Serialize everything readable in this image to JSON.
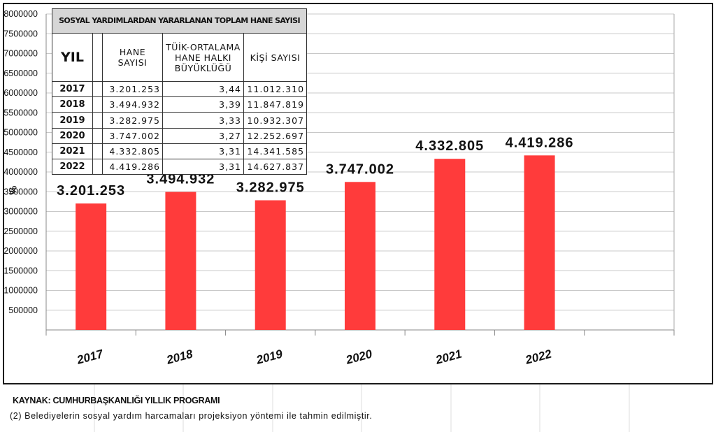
{
  "chart_data": {
    "type": "bar",
    "categories": [
      "2017",
      "2018",
      "2019",
      "2020",
      "2021",
      "2022"
    ],
    "values": [
      3201253,
      3494932,
      3282975,
      3747002,
      4332805,
      4419286
    ],
    "data_labels": [
      "3.201.253",
      "3.494.932",
      "3.282.975",
      "3.747.002",
      "4.332.805",
      "4.419.286"
    ],
    "ylim": [
      0,
      8000000
    ],
    "yticks": [
      "500000",
      "1000000",
      "1500000",
      "2000000",
      "2500000",
      "3000000",
      "3500000",
      "4000000",
      "4500000",
      "5000000",
      "5500000",
      "6000000",
      "6500000",
      "7000000",
      "7500000",
      "8000000"
    ],
    "ylabel": "%",
    "bar_color": "#ff3b3b",
    "grid": true,
    "legend": "none"
  },
  "table": {
    "title": "SOSYAL YARDIMLARDAN YARARLANAN TOPLAM HANE SAYISI",
    "headers": [
      "YIL",
      "HANE SAYISI",
      "TÜİK-ORTALAMA HANE HALKI BÜYÜKLÜĞÜ",
      "KİŞİ SAYISI"
    ],
    "rows": [
      [
        "2017",
        "3.201.253",
        "3,44",
        "11.012.310"
      ],
      [
        "2018",
        "3.494.932",
        "3,39",
        "11.847.819"
      ],
      [
        "2019",
        "3.282.975",
        "3,33",
        "10.932.307"
      ],
      [
        "2020",
        "3.747.002",
        "3,27",
        "12.252.697"
      ],
      [
        "2021",
        "4.332.805",
        "3,31",
        "14.341.585"
      ],
      [
        "2022",
        "4.419.286",
        "3,31",
        "14.627.837"
      ]
    ]
  },
  "footer": {
    "source": "KAYNAK: CUMHURBAŞKANLIĞI YILLIK PROGRAMI",
    "note": "(2) Belediyelerin sosyal yardım harcamaları projeksiyon yöntemi ile tahmin edilmiştir."
  },
  "colors": {
    "bar": "#ff3b3b",
    "table_title_bg": "#d6d6d6",
    "gridline": "#c8c8c8"
  }
}
